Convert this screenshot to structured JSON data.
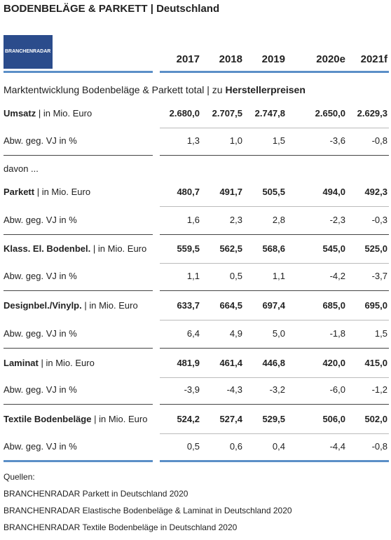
{
  "header": {
    "title": "BODENBELÄGE & PARKETT | Deutschland",
    "logo": "BRANCHENRADAR"
  },
  "table": {
    "columns": [
      "2017",
      "2018",
      "2019",
      "2020e",
      "2021f"
    ],
    "subtitle": {
      "text": "Marktentwicklung Bodenbeläge & Parkett total | zu",
      "bold": "Herstellerpreisen"
    },
    "davon": "davon ...",
    "groups": [
      {
        "name": "Umsatz",
        "unit": "| in Mio. Euro",
        "values": [
          "2.680,0",
          "2.707,5",
          "2.747,8",
          "2.650,0",
          "2.629,3"
        ],
        "change_label": "Abw. geg. VJ in %",
        "change": [
          "1,3",
          "1,0",
          "1,5",
          "-3,6",
          "-0,8"
        ]
      },
      {
        "name": "Parkett",
        "unit": "| in Mio. Euro",
        "values": [
          "480,7",
          "491,7",
          "505,5",
          "494,0",
          "492,3"
        ],
        "change_label": "Abw. geg. VJ in %",
        "change": [
          "1,6",
          "2,3",
          "2,8",
          "-2,3",
          "-0,3"
        ]
      },
      {
        "name": "Klass. El. Bodenbel.",
        "unit": "| in Mio. Euro",
        "values": [
          "559,5",
          "562,5",
          "568,6",
          "545,0",
          "525,0"
        ],
        "change_label": "Abw. geg. VJ in %",
        "change": [
          "1,1",
          "0,5",
          "1,1",
          "-4,2",
          "-3,7"
        ]
      },
      {
        "name": "Designbel./Vinylp.",
        "unit": "| in Mio. Euro",
        "values": [
          "633,7",
          "664,5",
          "697,4",
          "685,0",
          "695,0"
        ],
        "change_label": "Abw. geg. VJ in %",
        "change": [
          "6,4",
          "4,9",
          "5,0",
          "-1,8",
          "1,5"
        ]
      },
      {
        "name": "Laminat",
        "unit": "| in Mio. Euro",
        "values": [
          "481,9",
          "461,4",
          "446,8",
          "420,0",
          "415,0"
        ],
        "change_label": "Abw. geg. VJ in %",
        "change": [
          "-3,9",
          "-4,3",
          "-3,2",
          "-6,0",
          "-1,2"
        ]
      },
      {
        "name": "Textile Bodenbeläge",
        "unit": "| in Mio. Euro",
        "values": [
          "524,2",
          "527,4",
          "529,5",
          "506,0",
          "502,0"
        ],
        "change_label": "Abw. geg. VJ in %",
        "change": [
          "0,5",
          "0,6",
          "0,4",
          "-4,4",
          "-0,8"
        ]
      }
    ]
  },
  "sources": {
    "title": "Quellen:",
    "items": [
      "BRANCHENRADAR Parkett in Deutschland 2020",
      "BRANCHENRADAR Elastische Bodenbeläge & Laminat in Deutschland 2020",
      "BRANCHENRADAR Textile Bodenbeläge in Deutschland 2020"
    ]
  }
}
